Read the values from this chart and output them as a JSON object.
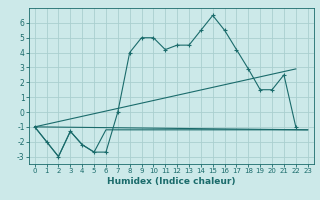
{
  "xlabel": "Humidex (Indice chaleur)",
  "background_color": "#cce9e9",
  "grid_color": "#aacfcf",
  "line_color": "#1a6b6b",
  "xlim": [
    -0.5,
    23.5
  ],
  "ylim": [
    -3.5,
    7.0
  ],
  "yticks": [
    -3,
    -2,
    -1,
    0,
    1,
    2,
    3,
    4,
    5,
    6
  ],
  "xticks": [
    0,
    1,
    2,
    3,
    4,
    5,
    6,
    7,
    8,
    9,
    10,
    11,
    12,
    13,
    14,
    15,
    16,
    17,
    18,
    19,
    20,
    21,
    22,
    23
  ],
  "series_main": {
    "x": [
      0,
      1,
      2,
      3,
      4,
      5,
      6,
      7,
      8,
      9,
      10,
      11,
      12,
      13,
      14,
      15,
      16,
      17,
      18,
      19,
      20,
      21,
      22
    ],
    "y": [
      -1,
      -2,
      -3,
      -1.3,
      -2.2,
      -2.7,
      -2.7,
      0.0,
      4.0,
      5.0,
      5.0,
      4.2,
      4.5,
      4.5,
      5.5,
      6.5,
      5.5,
      4.2,
      2.9,
      1.5,
      1.5,
      2.5,
      -1.0
    ]
  },
  "series_min": {
    "x": [
      0,
      1,
      2,
      3,
      4,
      5,
      6,
      7,
      8,
      9,
      10,
      11,
      12,
      13,
      14,
      15,
      16,
      17,
      18,
      19,
      20,
      21,
      22,
      23
    ],
    "y": [
      -1,
      -2,
      -3,
      -1.3,
      -2.2,
      -2.7,
      -1.2,
      -1.2,
      -1.2,
      -1.2,
      -1.2,
      -1.2,
      -1.2,
      -1.2,
      -1.2,
      -1.2,
      -1.2,
      -1.2,
      -1.2,
      -1.2,
      -1.2,
      -1.2,
      -1.2,
      -1.2
    ]
  },
  "series_trend1": {
    "x": [
      0,
      22
    ],
    "y": [
      -1,
      2.9
    ]
  },
  "series_trend2": {
    "x": [
      0,
      23
    ],
    "y": [
      -1,
      -1.2
    ]
  }
}
